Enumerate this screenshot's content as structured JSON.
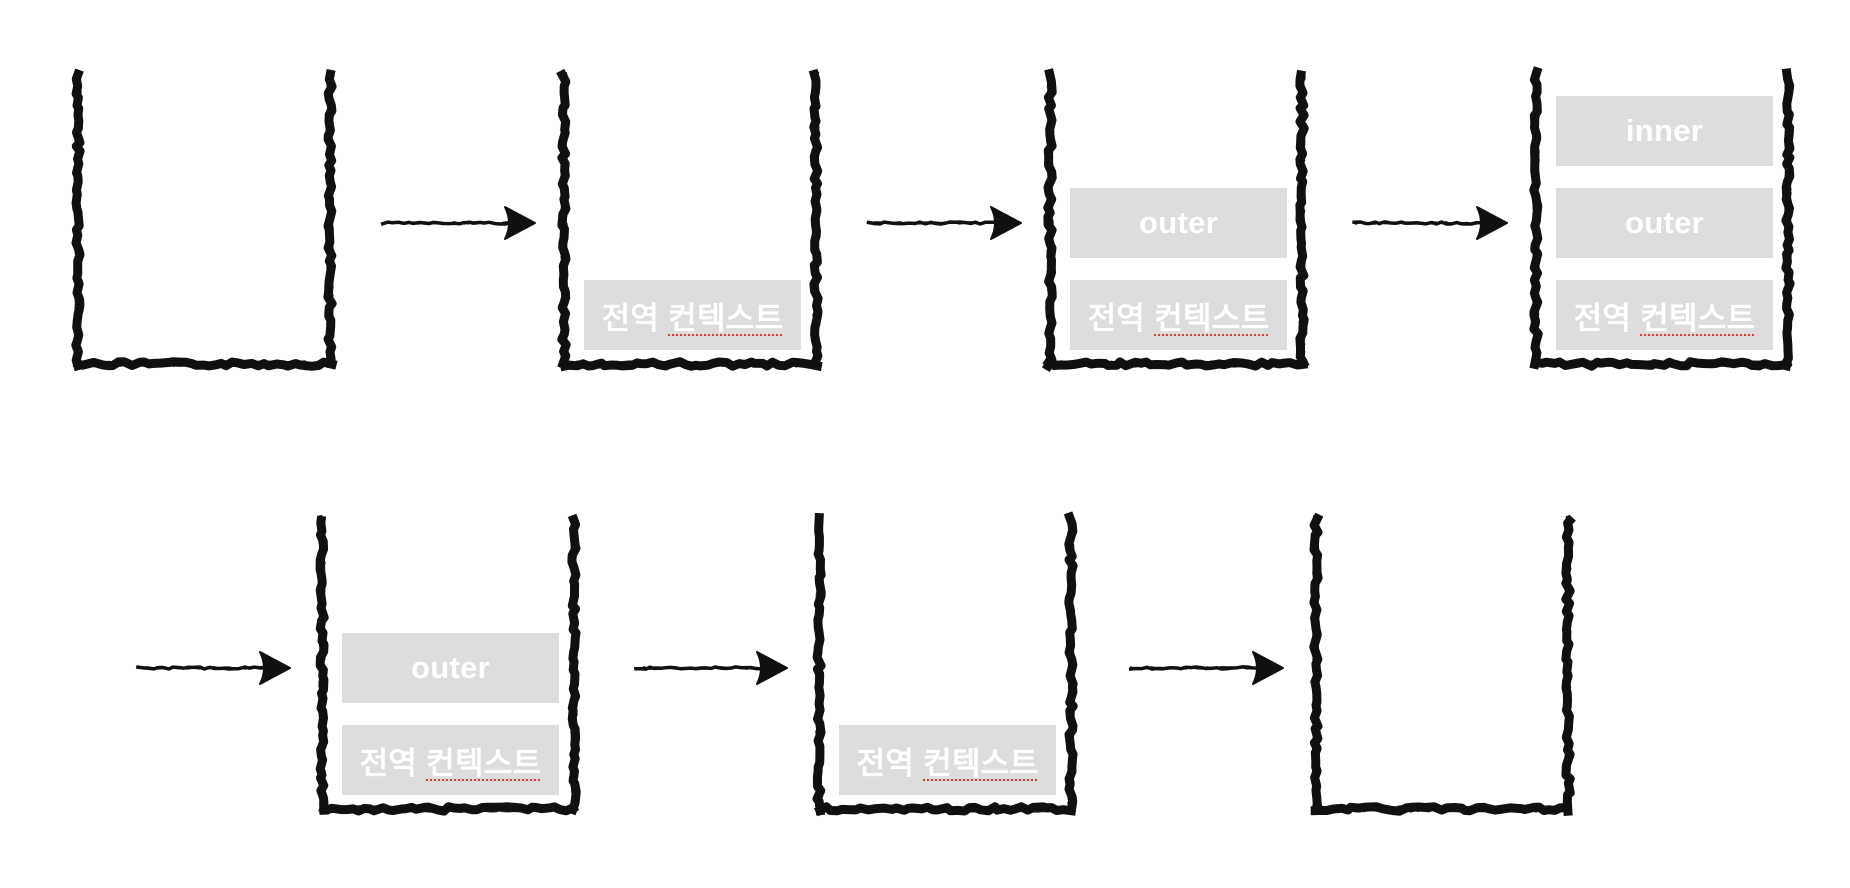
{
  "diagram": {
    "description_none": "",
    "frames": [
      {
        "blocks": []
      },
      {
        "blocks": [
          {
            "label": "전역",
            "underlined": "컨텍스트"
          }
        ]
      },
      {
        "blocks": [
          {
            "label": "전역",
            "underlined": "컨텍스트"
          },
          {
            "label": "outer",
            "underlined": ""
          }
        ]
      },
      {
        "blocks": [
          {
            "label": "전역",
            "underlined": "컨텍스트"
          },
          {
            "label": "outer",
            "underlined": ""
          },
          {
            "label": "inner",
            "underlined": ""
          }
        ]
      },
      {
        "blocks": [
          {
            "label": "전역",
            "underlined": "컨텍스트"
          },
          {
            "label": "outer",
            "underlined": ""
          }
        ]
      },
      {
        "blocks": [
          {
            "label": "전역",
            "underlined": "컨텍스트"
          }
        ]
      },
      {
        "blocks": []
      }
    ],
    "arrow_count": 6,
    "colors": {
      "stroke": "#111111",
      "block": "#dddddd",
      "text": "#ffffff",
      "spellcheck": "#e53935"
    }
  }
}
